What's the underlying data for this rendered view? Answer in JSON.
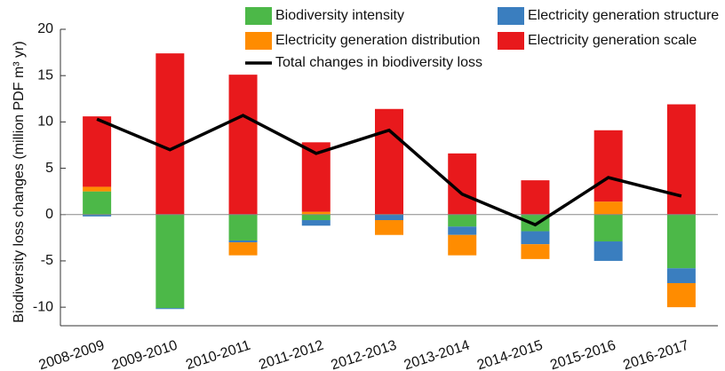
{
  "chart_data": {
    "type": "bar",
    "stacked": true,
    "y_label": "Biodiversity loss changes (million PDF m³ yr)",
    "categories": [
      "2008-2009",
      "2009-2010",
      "2010-2011",
      "2011-2012",
      "2012-2013",
      "2013-2014",
      "2014-2015",
      "2015-2016",
      "2016-2017"
    ],
    "series": [
      {
        "name": "Biodiversity intensity",
        "color": "#4cb848",
        "values": [
          2.5,
          -10.1,
          -2.8,
          -0.6,
          0,
          -1.3,
          -1.8,
          -2.9,
          -5.8
        ]
      },
      {
        "name": "Electricity generation structure",
        "color": "#3a7ebf",
        "values": [
          -0.2,
          -0.1,
          -0.2,
          -0.6,
          -0.6,
          -0.9,
          -1.4,
          -2.1,
          -1.6
        ]
      },
      {
        "name": "Electricity generation distribution",
        "color": "#ff8c00",
        "values": [
          0.5,
          0,
          -1.4,
          0.3,
          -1.6,
          -2.2,
          -1.6,
          1.4,
          -2.6
        ]
      },
      {
        "name": "Electricity generation scale",
        "color": "#e8191c",
        "values": [
          7.6,
          17.4,
          15.1,
          7.5,
          11.4,
          6.6,
          3.7,
          7.7,
          11.9
        ]
      }
    ],
    "line": {
      "name": "Total changes in biodiversity loss",
      "color": "#000000",
      "values": [
        10.3,
        7.0,
        10.7,
        6.6,
        9.1,
        2.2,
        -1.1,
        4.0,
        2.0
      ]
    },
    "ylim": [
      -12,
      20
    ],
    "yticks": [
      -10,
      -5,
      0,
      5,
      10,
      15,
      20
    ],
    "grid": false
  }
}
